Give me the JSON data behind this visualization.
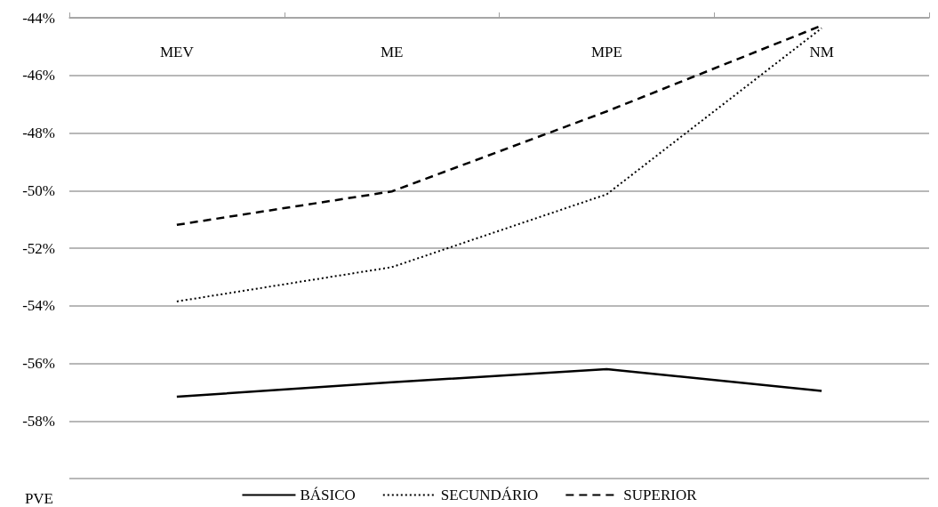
{
  "chart_data": {
    "type": "line",
    "ylabel": "PVE",
    "categories": [
      "MEV",
      "ME",
      "MPE",
      "NM"
    ],
    "series": [
      {
        "name": "BÁSICO",
        "color": "#000000",
        "line_style": "solid",
        "values": [
          -57.16,
          -56.66,
          -56.2,
          -56.96
        ]
      },
      {
        "name": "SECUNDÁRIO",
        "color": "#000000",
        "line_style": "dotted",
        "values": [
          -53.85,
          -52.66,
          -50.13,
          -44.36
        ]
      },
      {
        "name": "SUPERIOR",
        "color": "#000000",
        "line_style": "dashed",
        "values": [
          -51.19,
          -50.03,
          -47.25,
          -44.27
        ]
      }
    ],
    "ylim": [
      -60,
      -44
    ],
    "yticks": [
      {
        "value": -60,
        "label": null
      },
      {
        "value": -58,
        "label": "-58%"
      },
      {
        "value": -56,
        "label": "-56%"
      },
      {
        "value": -54,
        "label": "-54%"
      },
      {
        "value": -52,
        "label": "-52%"
      },
      {
        "value": -50,
        "label": "-50%"
      },
      {
        "value": -48,
        "label": "-48%"
      },
      {
        "value": -46,
        "label": "-46%"
      },
      {
        "value": -44,
        "label": "-44%"
      }
    ],
    "grid": "y",
    "legend": "bottom",
    "marker": "none"
  }
}
